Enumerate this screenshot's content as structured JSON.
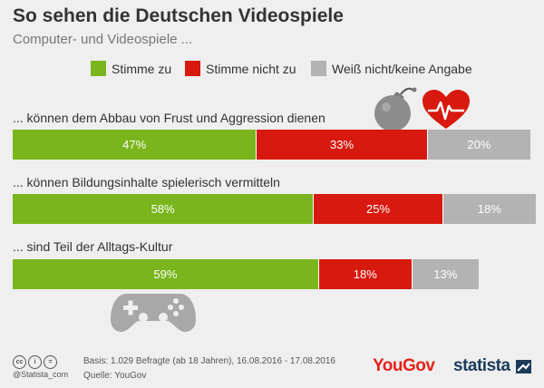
{
  "title": "So sehen die Deutschen Videospiele",
  "subtitle": "Computer- und Videospiele ...",
  "colors": {
    "agree": "#7ab51d",
    "disagree": "#d7190f",
    "unknown": "#b3b3b3"
  },
  "legend": [
    {
      "label": "Stimme zu",
      "color": "#7ab51d"
    },
    {
      "label": "Stimme nicht zu",
      "color": "#d7190f"
    },
    {
      "label": "Weiß nicht/keine Angabe",
      "color": "#b3b3b3"
    }
  ],
  "chart_data": {
    "type": "bar",
    "orientation": "horizontal-stacked-100",
    "title": "So sehen die Deutschen Videospiele",
    "subtitle": "Computer- und Videospiele ...",
    "categories": [
      "... können dem Abbau von Frust und Aggression dienen",
      "... können Bildungsinhalte spielerisch vermitteln",
      "... sind Teil der Alltags-Kultur"
    ],
    "series": [
      {
        "name": "Stimme zu",
        "values": [
          47,
          58,
          59
        ],
        "labels": [
          "47%",
          "58%",
          "59%"
        ]
      },
      {
        "name": "Stimme nicht zu",
        "values": [
          33,
          25,
          18
        ],
        "labels": [
          "33%",
          "25%",
          "18%"
        ]
      },
      {
        "name": "Weiß nicht/keine Angabe",
        "values": [
          20,
          18,
          13
        ],
        "labels": [
          "20%",
          "18%",
          "13%"
        ]
      }
    ],
    "xlim": [
      0,
      100
    ],
    "grid": false,
    "legend_position": "top"
  },
  "footer": {
    "cc_badges": [
      "cc",
      "i",
      "="
    ],
    "credit": "@Statista_com",
    "basis": "Basis: 1.029 Befragte (ab 18 Jahren), 16.08.2016 - 17.08.2016",
    "source": "Quelle: YouGov",
    "yougov_logo": "YouGov",
    "statista_logo": "statista"
  },
  "icons": [
    "bomb-icon",
    "heart-pulse-icon",
    "gamepad-icon",
    "statista-logo-icon"
  ]
}
